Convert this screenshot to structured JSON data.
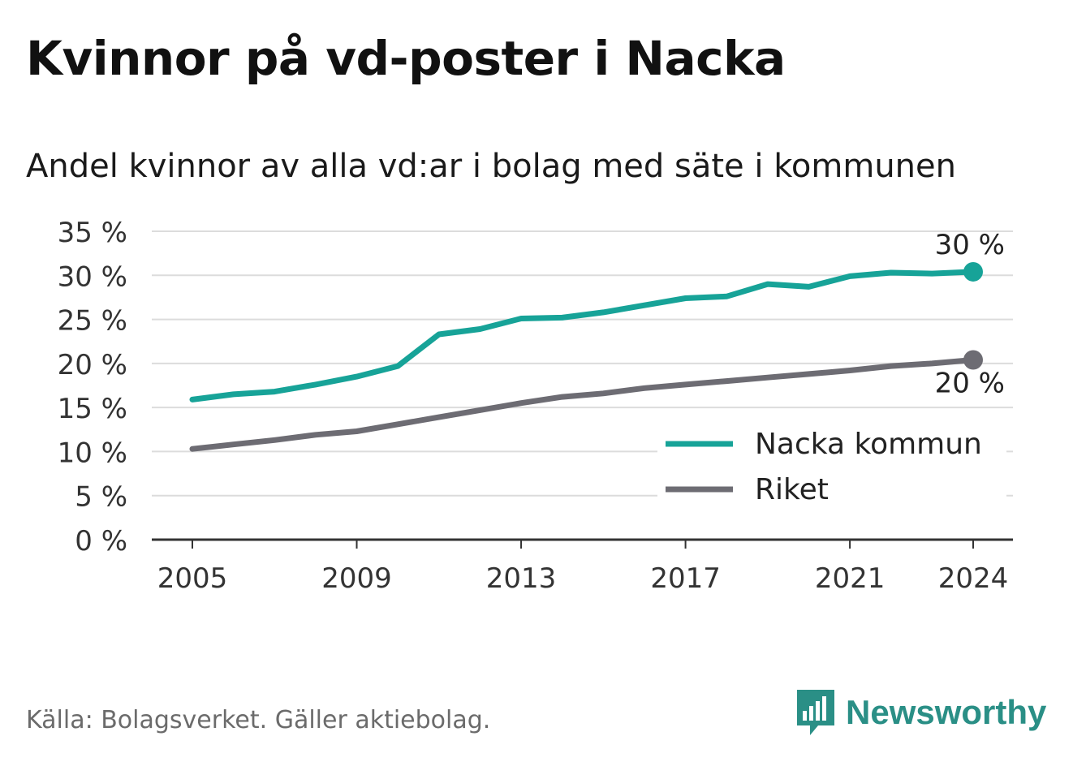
{
  "title": "Kvinnor på vd-poster i Nacka",
  "subtitle": "Andel kvinnor av alla vd:ar i bolag med säte i kommunen",
  "source": "Källa: Bolagsverket. Gäller aktiebolag.",
  "brand": {
    "name": "Newsworthy",
    "icon": "newsworthy-logo-icon",
    "color": "#2a8f86"
  },
  "chart_data": {
    "type": "line",
    "x": [
      2005,
      2006,
      2007,
      2008,
      2009,
      2010,
      2011,
      2012,
      2013,
      2014,
      2015,
      2016,
      2017,
      2018,
      2019,
      2020,
      2021,
      2022,
      2023,
      2024
    ],
    "series": [
      {
        "name": "Nacka kommun",
        "color": "#17a398",
        "values": [
          15.9,
          16.5,
          16.8,
          17.6,
          18.5,
          19.7,
          23.3,
          23.9,
          25.1,
          25.2,
          25.8,
          26.6,
          27.4,
          27.6,
          29.0,
          28.7,
          29.9,
          30.3,
          30.2,
          30.4
        ],
        "end_label": "30 %"
      },
      {
        "name": "Riket",
        "color": "#6d6c73",
        "values": [
          10.3,
          10.8,
          11.3,
          11.9,
          12.3,
          13.1,
          13.9,
          14.7,
          15.5,
          16.2,
          16.6,
          17.2,
          17.6,
          18.0,
          18.4,
          18.8,
          19.2,
          19.7,
          20.0,
          20.4
        ],
        "end_label": "20 %"
      }
    ],
    "ylim": [
      0,
      35
    ],
    "yticks": [
      0,
      5,
      10,
      15,
      20,
      25,
      30,
      35
    ],
    "ytick_labels": [
      "0 %",
      "5 %",
      "10 %",
      "15 %",
      "20 %",
      "25 %",
      "30 %",
      "35 %"
    ],
    "xticks": [
      2005,
      2009,
      2013,
      2017,
      2021,
      2024
    ],
    "xtick_labels": [
      "2005",
      "2009",
      "2013",
      "2017",
      "2021",
      "2024"
    ],
    "grid": true,
    "legend_position": "bottom-right",
    "xlabel": "",
    "ylabel": ""
  }
}
